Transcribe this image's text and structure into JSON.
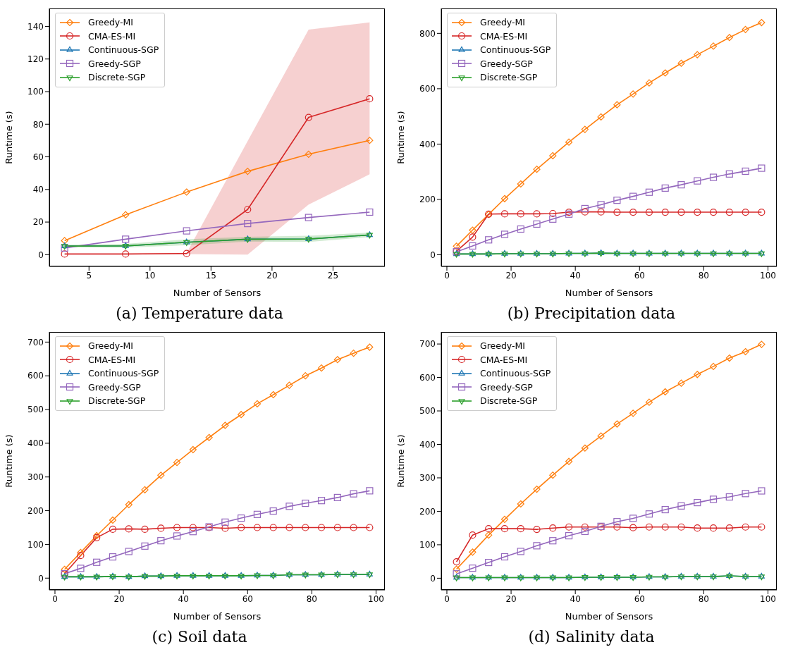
{
  "chart_data": [
    {
      "type": "line",
      "title": "(a) Temperature data",
      "xlabel": "Number of Sensors",
      "ylabel": "Runtime (s)",
      "x": [
        3,
        8,
        13,
        18,
        23,
        28
      ],
      "xlim": [
        1.75,
        29.25
      ],
      "xticks": [
        5,
        10,
        15,
        20,
        25
      ],
      "ylim": [
        -7.2,
        151
      ],
      "yticks": [
        0,
        20,
        40,
        60,
        80,
        100,
        120,
        140
      ],
      "legend": "top left",
      "grid": false,
      "line_style": "solid",
      "series": [
        {
          "name": "Greedy-MI",
          "color": "#ff7f0e",
          "marker": "diamond",
          "values": [
            8.6,
            24.5,
            38.4,
            51.1,
            61.6,
            70.1
          ]
        },
        {
          "name": "CMA-ES-MI",
          "color": "#d62728",
          "marker": "circle",
          "values": [
            0.4,
            0.4,
            0.7,
            27.7,
            84.2,
            95.6
          ],
          "lower": [
            0.4,
            0.4,
            0.4,
            0,
            30.7,
            49.3
          ],
          "upper": [
            0.4,
            0.4,
            1,
            69.6,
            138,
            142.5
          ]
        },
        {
          "name": "Continuous-SGP",
          "color": "#1f77b4",
          "marker": "triangle",
          "values": [
            5.3,
            5.4,
            7.6,
            9.5,
            9.6,
            12.1
          ]
        },
        {
          "name": "Greedy-SGP",
          "color": "#9467bd",
          "marker": "square",
          "values": [
            4.1,
            9.5,
            14.6,
            19.1,
            22.8,
            26.1
          ]
        },
        {
          "name": "Discrete-SGP",
          "color": "#2ca02c",
          "marker": "triangle_down",
          "values": [
            5.3,
            5.4,
            7.6,
            9.5,
            9.6,
            12.1
          ],
          "lower": [
            4.5,
            4.4,
            5.8,
            8,
            7.8,
            10.8
          ],
          "upper": [
            6.1,
            6.6,
            9.4,
            11,
            11.6,
            13.5
          ]
        }
      ]
    },
    {
      "type": "line",
      "title": "(b) Precipitation data",
      "xlabel": "Number of Sensors",
      "ylabel": "Runtime (s)",
      "x": [
        3,
        8,
        13,
        18,
        23,
        28,
        33,
        38,
        43,
        48,
        53,
        58,
        63,
        68,
        73,
        78,
        83,
        88,
        93,
        98
      ],
      "xlim": [
        -1.75,
        102.75
      ],
      "xticks": [
        0,
        20,
        40,
        60,
        80,
        100
      ],
      "ylim": [
        -42,
        890
      ],
      "yticks": [
        0,
        200,
        400,
        600,
        800
      ],
      "legend": "top left",
      "grid": false,
      "line_style": "solid",
      "series": [
        {
          "name": "Greedy-MI",
          "color": "#ff7f0e",
          "marker": "diamond",
          "values": [
            31,
            89,
            146,
            203,
            256,
            309,
            358,
            407,
            453,
            498,
            542,
            581,
            621,
            657,
            692,
            723,
            754,
            785,
            814,
            839
          ]
        },
        {
          "name": "CMA-ES-MI",
          "color": "#d62728",
          "marker": "circle",
          "values": [
            13,
            64,
            147,
            148,
            148,
            148,
            149,
            154,
            155,
            155,
            154,
            154,
            154,
            154,
            154,
            154,
            154,
            154,
            154,
            154
          ]
        },
        {
          "name": "Continuous-SGP",
          "color": "#1f77b4",
          "marker": "triangle",
          "values": [
            3,
            3,
            3,
            4,
            4,
            4,
            4,
            5,
            5,
            6,
            5,
            5,
            5,
            5,
            5,
            5,
            5,
            5,
            5,
            5
          ]
        },
        {
          "name": "Greedy-SGP",
          "color": "#9467bd",
          "marker": "square",
          "values": [
            11,
            32,
            54,
            74,
            93,
            111,
            129,
            147,
            167,
            181,
            197,
            211,
            226,
            241,
            253,
            267,
            280,
            292,
            302,
            313
          ]
        },
        {
          "name": "Discrete-SGP",
          "color": "#2ca02c",
          "marker": "triangle_down",
          "values": [
            3,
            3,
            3,
            4,
            4,
            4,
            4,
            5,
            5,
            6,
            5,
            5,
            5,
            5,
            5,
            5,
            5,
            5,
            5,
            5
          ]
        }
      ]
    },
    {
      "type": "line",
      "title": "(c) Soil data",
      "xlabel": "Number of Sensors",
      "ylabel": "Runtime (s)",
      "x": [
        3,
        8,
        13,
        18,
        23,
        28,
        33,
        38,
        43,
        48,
        53,
        58,
        63,
        68,
        73,
        78,
        83,
        88,
        93,
        98
      ],
      "xlim": [
        -1.75,
        102.75
      ],
      "xticks": [
        0,
        20,
        40,
        60,
        80,
        100
      ],
      "ylim": [
        -35,
        730
      ],
      "yticks": [
        0,
        100,
        200,
        300,
        400,
        500,
        600,
        700
      ],
      "legend": "top left",
      "grid": false,
      "line_style": "solid",
      "series": [
        {
          "name": "Greedy-MI",
          "color": "#ff7f0e",
          "marker": "diamond",
          "values": [
            26,
            76,
            126,
            172,
            218,
            262,
            305,
            343,
            381,
            417,
            453,
            485,
            517,
            544,
            572,
            600,
            623,
            648,
            667,
            685
          ]
        },
        {
          "name": "CMA-ES-MI",
          "color": "#d62728",
          "marker": "circle",
          "values": [
            13,
            67,
            120,
            145,
            146,
            145,
            148,
            150,
            150,
            150,
            148,
            150,
            150,
            150,
            150,
            150,
            150,
            150,
            150,
            150
          ]
        },
        {
          "name": "Continuous-SGP",
          "color": "#1f77b4",
          "marker": "triangle",
          "values": [
            4,
            4,
            4,
            5,
            4,
            6,
            6,
            7,
            7,
            7,
            7,
            7,
            8,
            8,
            10,
            10,
            10,
            11,
            11,
            11
          ]
        },
        {
          "name": "Greedy-SGP",
          "color": "#9467bd",
          "marker": "square",
          "values": [
            13,
            29,
            47,
            63,
            79,
            95,
            111,
            125,
            138,
            152,
            166,
            178,
            189,
            199,
            213,
            222,
            230,
            239,
            250,
            259
          ]
        },
        {
          "name": "Discrete-SGP",
          "color": "#2ca02c",
          "marker": "triangle_down",
          "values": [
            4,
            4,
            4,
            5,
            4,
            6,
            6,
            7,
            7,
            7,
            7,
            7,
            8,
            8,
            10,
            10,
            10,
            11,
            11,
            11
          ]
        }
      ]
    },
    {
      "type": "line",
      "title": "(d) Salinity data",
      "xlabel": "Number of Sensors",
      "ylabel": "Runtime (s)",
      "x": [
        3,
        8,
        13,
        18,
        23,
        28,
        33,
        38,
        43,
        48,
        53,
        58,
        63,
        68,
        73,
        78,
        83,
        88,
        93,
        98
      ],
      "xlim": [
        -1.75,
        102.75
      ],
      "xticks": [
        0,
        20,
        40,
        60,
        80,
        100
      ],
      "ylim": [
        -35,
        736
      ],
      "yticks": [
        0,
        100,
        200,
        300,
        400,
        500,
        600,
        700
      ],
      "legend": "top left",
      "grid": false,
      "line_style": "solid",
      "series": [
        {
          "name": "Greedy-MI",
          "color": "#ff7f0e",
          "marker": "diamond",
          "values": [
            27,
            78,
            129,
            176,
            222,
            266,
            308,
            349,
            389,
            425,
            461,
            493,
            526,
            557,
            583,
            609,
            633,
            658,
            677,
            699
          ]
        },
        {
          "name": "CMA-ES-MI",
          "color": "#d62728",
          "marker": "circle",
          "values": [
            49,
            129,
            148,
            148,
            148,
            146,
            150,
            153,
            153,
            153,
            153,
            151,
            153,
            153,
            153,
            150,
            150,
            150,
            153,
            153
          ]
        },
        {
          "name": "Continuous-SGP",
          "color": "#1f77b4",
          "marker": "triangle",
          "values": [
            2,
            2,
            2,
            2,
            2,
            2,
            2,
            2,
            3,
            3,
            3,
            3,
            4,
            4,
            5,
            5,
            5,
            7,
            5,
            5
          ]
        },
        {
          "name": "Greedy-SGP",
          "color": "#9467bd",
          "marker": "square",
          "values": [
            13,
            30,
            47,
            64,
            80,
            97,
            112,
            127,
            140,
            155,
            169,
            179,
            192,
            205,
            216,
            226,
            236,
            243,
            253,
            261
          ]
        },
        {
          "name": "Discrete-SGP",
          "color": "#2ca02c",
          "marker": "triangle_down",
          "values": [
            2,
            2,
            2,
            2,
            2,
            2,
            2,
            2,
            3,
            3,
            3,
            3,
            4,
            4,
            5,
            5,
            5,
            7,
            5,
            5
          ]
        }
      ]
    }
  ]
}
